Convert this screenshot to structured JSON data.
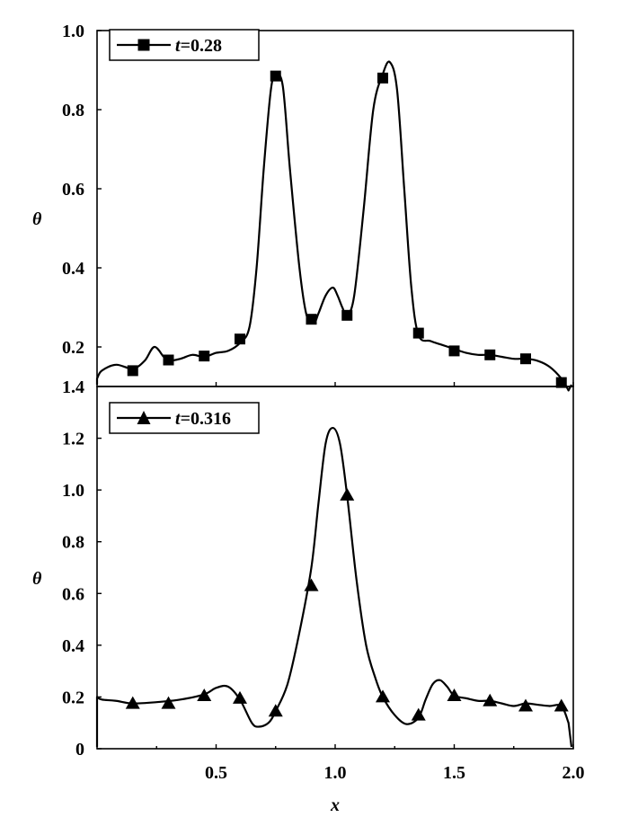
{
  "chart_data": [
    {
      "type": "line",
      "marker": "square",
      "ylabel": "θ",
      "xlim": [
        0,
        2.0
      ],
      "ylim": [
        0.1,
        1.0
      ],
      "yticks": [
        "1.0",
        "0.8",
        "0.6",
        "0.4",
        "0.2"
      ],
      "legend": {
        "position": "top-left",
        "var": "t",
        "value": "=0.28"
      },
      "curve": {
        "x": [
          0.0,
          0.02,
          0.08,
          0.15,
          0.2,
          0.24,
          0.28,
          0.3,
          0.35,
          0.4,
          0.45,
          0.5,
          0.55,
          0.6,
          0.64,
          0.67,
          0.7,
          0.73,
          0.75,
          0.78,
          0.81,
          0.85,
          0.88,
          0.91,
          0.93,
          0.96,
          0.99,
          1.01,
          1.03,
          1.05,
          1.08,
          1.12,
          1.16,
          1.2,
          1.23,
          1.26,
          1.29,
          1.32,
          1.35,
          1.4,
          1.45,
          1.5,
          1.55,
          1.6,
          1.65,
          1.7,
          1.75,
          1.8,
          1.85,
          1.9,
          1.95,
          1.98
        ],
        "y": [
          0.12,
          0.14,
          0.155,
          0.145,
          0.165,
          0.2,
          0.175,
          0.165,
          0.17,
          0.18,
          0.175,
          0.185,
          0.19,
          0.21,
          0.25,
          0.4,
          0.65,
          0.85,
          0.885,
          0.86,
          0.65,
          0.4,
          0.28,
          0.26,
          0.285,
          0.33,
          0.35,
          0.33,
          0.3,
          0.28,
          0.33,
          0.55,
          0.8,
          0.89,
          0.92,
          0.85,
          0.6,
          0.35,
          0.23,
          0.215,
          0.205,
          0.195,
          0.185,
          0.18,
          0.18,
          0.175,
          0.17,
          0.17,
          0.165,
          0.15,
          0.12,
          0.09
        ]
      },
      "markers": {
        "x": [
          0.15,
          0.3,
          0.45,
          0.6,
          0.75,
          0.9,
          1.05,
          1.2,
          1.35,
          1.5,
          1.65,
          1.8,
          1.95
        ],
        "y": [
          0.14,
          0.167,
          0.177,
          0.22,
          0.885,
          0.27,
          0.28,
          0.88,
          0.235,
          0.19,
          0.18,
          0.17,
          0.11
        ]
      }
    },
    {
      "type": "line",
      "marker": "triangle",
      "xlabel": "x",
      "ylabel": "θ",
      "xlim": [
        0,
        2.0
      ],
      "ylim": [
        0,
        1.4
      ],
      "xticks": [
        "0.5",
        "1.0",
        "1.5",
        "2.0"
      ],
      "yticks": [
        "1.4",
        "1.2",
        "1.0",
        "0.8",
        "0.6",
        "0.4",
        "0.2",
        "0"
      ],
      "legend": {
        "position": "top-left",
        "var": "t",
        "value": "=0.316"
      },
      "curve": {
        "x": [
          0.0,
          0.02,
          0.08,
          0.15,
          0.25,
          0.35,
          0.45,
          0.5,
          0.55,
          0.6,
          0.65,
          0.68,
          0.72,
          0.75,
          0.8,
          0.85,
          0.9,
          0.93,
          0.96,
          0.99,
          1.02,
          1.05,
          1.09,
          1.13,
          1.17,
          1.2,
          1.25,
          1.3,
          1.35,
          1.38,
          1.41,
          1.44,
          1.47,
          1.5,
          1.55,
          1.6,
          1.65,
          1.7,
          1.75,
          1.8,
          1.85,
          1.9,
          1.95,
          1.98
        ],
        "y": [
          0.2,
          0.19,
          0.185,
          0.175,
          0.18,
          0.19,
          0.21,
          0.235,
          0.24,
          0.19,
          0.1,
          0.085,
          0.1,
          0.145,
          0.25,
          0.45,
          0.7,
          0.95,
          1.18,
          1.24,
          1.18,
          0.98,
          0.65,
          0.4,
          0.27,
          0.2,
          0.13,
          0.095,
          0.12,
          0.19,
          0.25,
          0.265,
          0.24,
          0.205,
          0.195,
          0.185,
          0.185,
          0.175,
          0.165,
          0.175,
          0.17,
          0.165,
          0.165,
          0.1
        ]
      },
      "markers": {
        "x": [
          0.15,
          0.3,
          0.45,
          0.6,
          0.75,
          0.9,
          1.05,
          1.2,
          1.35,
          1.5,
          1.65,
          1.8,
          1.95
        ],
        "y": [
          0.175,
          0.175,
          0.205,
          0.195,
          0.145,
          0.63,
          0.98,
          0.2,
          0.13,
          0.205,
          0.185,
          0.165,
          0.165
        ]
      }
    }
  ]
}
